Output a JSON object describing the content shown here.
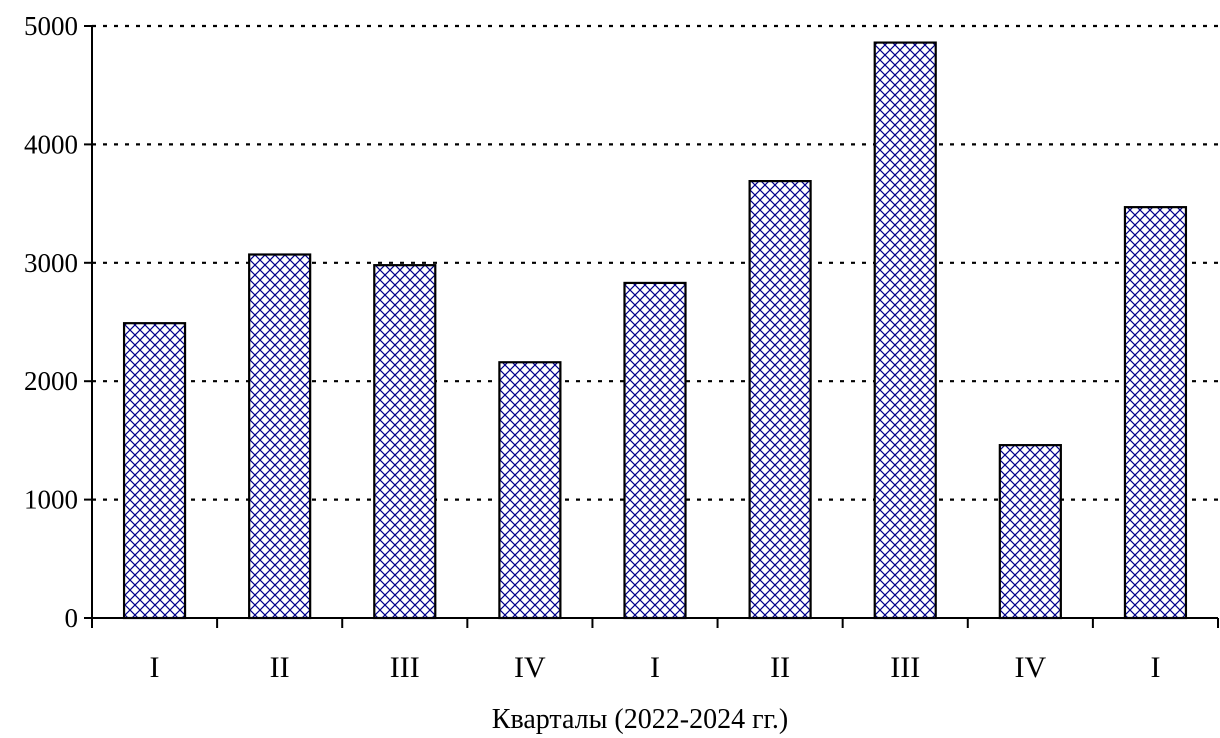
{
  "chart_data": {
    "type": "bar",
    "title": "",
    "xlabel": "Кварталы (2022-2024 гг.)",
    "ylabel": "",
    "categories": [
      "I",
      "II",
      "III",
      "IV",
      "I",
      "II",
      "III",
      "IV",
      "I"
    ],
    "values": [
      2490,
      3070,
      2980,
      2160,
      2830,
      3690,
      4860,
      1460,
      3470
    ],
    "ylim": [
      0,
      5000
    ],
    "yticks": [
      0,
      1000,
      2000,
      3000,
      4000,
      5000
    ],
    "ytick_labels": [
      "0",
      "1000",
      "2000",
      "3000",
      "4000",
      "5000"
    ],
    "grid": "horizontal dotted",
    "legend": "none",
    "colors": {
      "bar_pattern": "#00008b",
      "bar_fill": "#ffffff",
      "bar_outline": "#000000",
      "grid": "#000000"
    }
  }
}
